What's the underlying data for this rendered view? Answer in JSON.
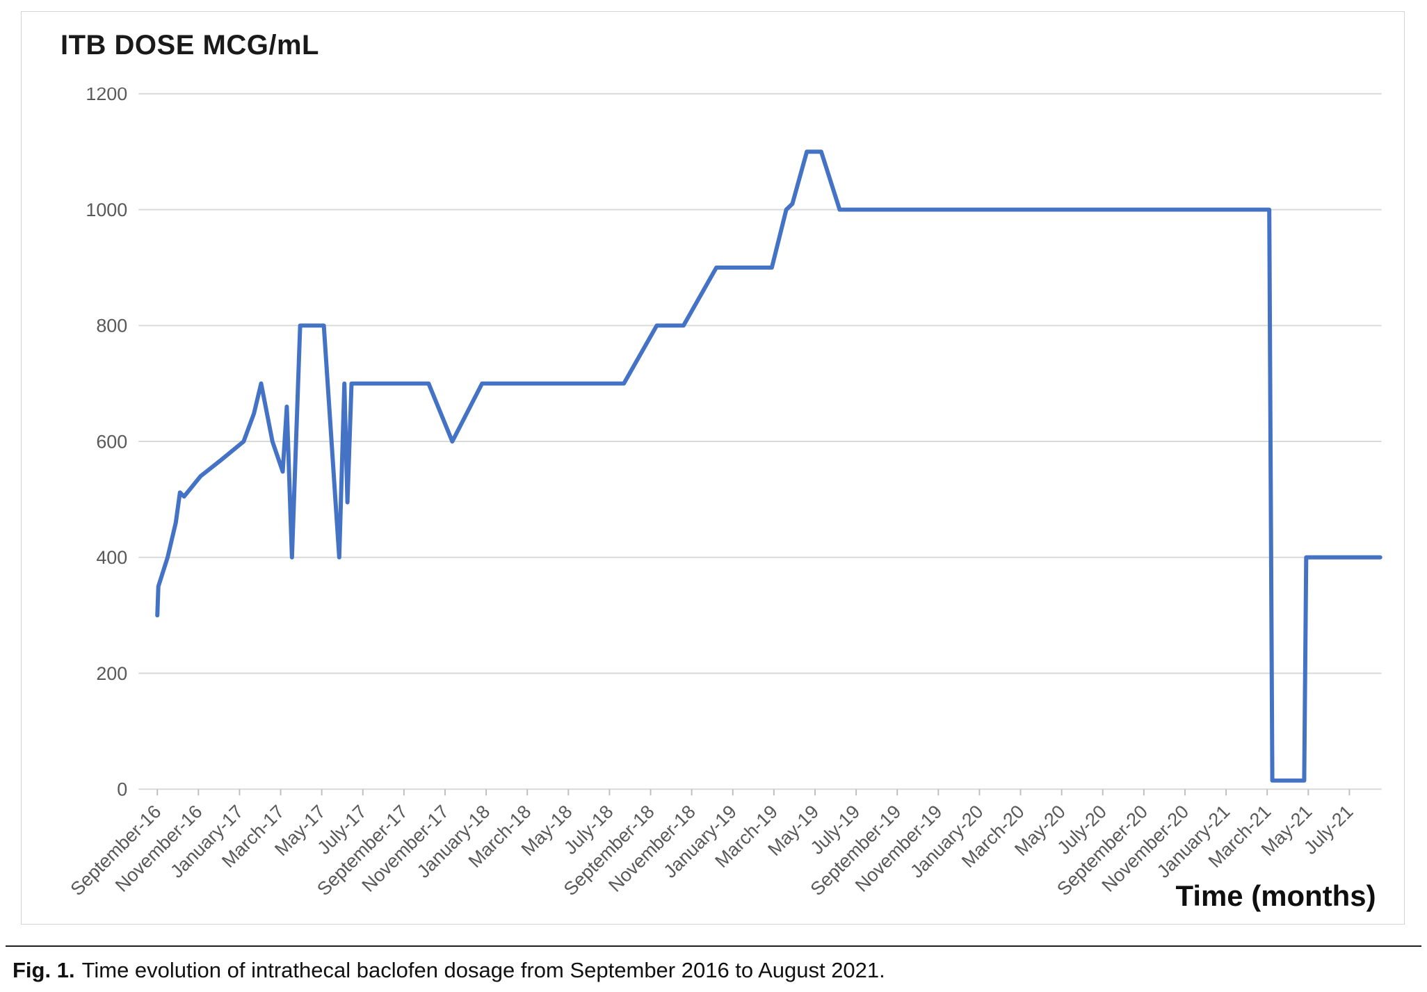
{
  "chart_data": {
    "type": "line",
    "title": "ITB DOSE MCG/mL",
    "xlabel": "Time (months)",
    "ylabel": "ITB dose (mcg/mL)",
    "ylim": [
      0,
      1200
    ],
    "y_ticks": [
      0,
      200,
      400,
      600,
      800,
      1000,
      1200
    ],
    "grid": "horizontal",
    "legend": "none",
    "line_color": "#4472C4",
    "grid_color": "#d9d9d9",
    "tick_color": "#bfbfbf",
    "tick_label_color": "#595959",
    "x_tick_labels": [
      "September-16",
      "November-16",
      "January-17",
      "March-17",
      "May-17",
      "July-17",
      "September-17",
      "November-17",
      "January-18",
      "March-18",
      "May-18",
      "July-18",
      "September-18",
      "November-18",
      "January-19",
      "March-19",
      "May-19",
      "July-19",
      "September-19",
      "November-19",
      "January-20",
      "March-20",
      "May-20",
      "July-20",
      "September-20",
      "November-20",
      "January-21",
      "March-21",
      "May-21",
      "July-21"
    ],
    "x_tick_interval_months": 2,
    "x_unit": "months since September 2016",
    "series": [
      {
        "name": "ITB dose",
        "points": [
          [
            0,
            300
          ],
          [
            0.05,
            350
          ],
          [
            0.5,
            400
          ],
          [
            0.9,
            460
          ],
          [
            1.1,
            512
          ],
          [
            1.3,
            505
          ],
          [
            2.1,
            540
          ],
          [
            3.1,
            568
          ],
          [
            4.2,
            600
          ],
          [
            4.7,
            648
          ],
          [
            5.05,
            700
          ],
          [
            5.6,
            600
          ],
          [
            6.1,
            548
          ],
          [
            6.3,
            660
          ],
          [
            6.55,
            400
          ],
          [
            6.95,
            800
          ],
          [
            8.1,
            800
          ],
          [
            8.85,
            400
          ],
          [
            9.1,
            700
          ],
          [
            9.25,
            495
          ],
          [
            9.45,
            700
          ],
          [
            13.2,
            700
          ],
          [
            14.35,
            600
          ],
          [
            15.8,
            700
          ],
          [
            22.7,
            700
          ],
          [
            24.3,
            800
          ],
          [
            25.6,
            800
          ],
          [
            27.2,
            900
          ],
          [
            29.9,
            900
          ],
          [
            30.6,
            1000
          ],
          [
            30.9,
            1010
          ],
          [
            31.6,
            1100
          ],
          [
            32.3,
            1100
          ],
          [
            33.2,
            1000
          ],
          [
            54.1,
            1000
          ],
          [
            54.25,
            15
          ],
          [
            55.8,
            15
          ],
          [
            55.9,
            400
          ],
          [
            59.5,
            400
          ]
        ]
      }
    ]
  },
  "caption": {
    "label": "Fig. 1.",
    "text": "Time evolution of intrathecal baclofen dosage from September 2016 to August 2021."
  }
}
